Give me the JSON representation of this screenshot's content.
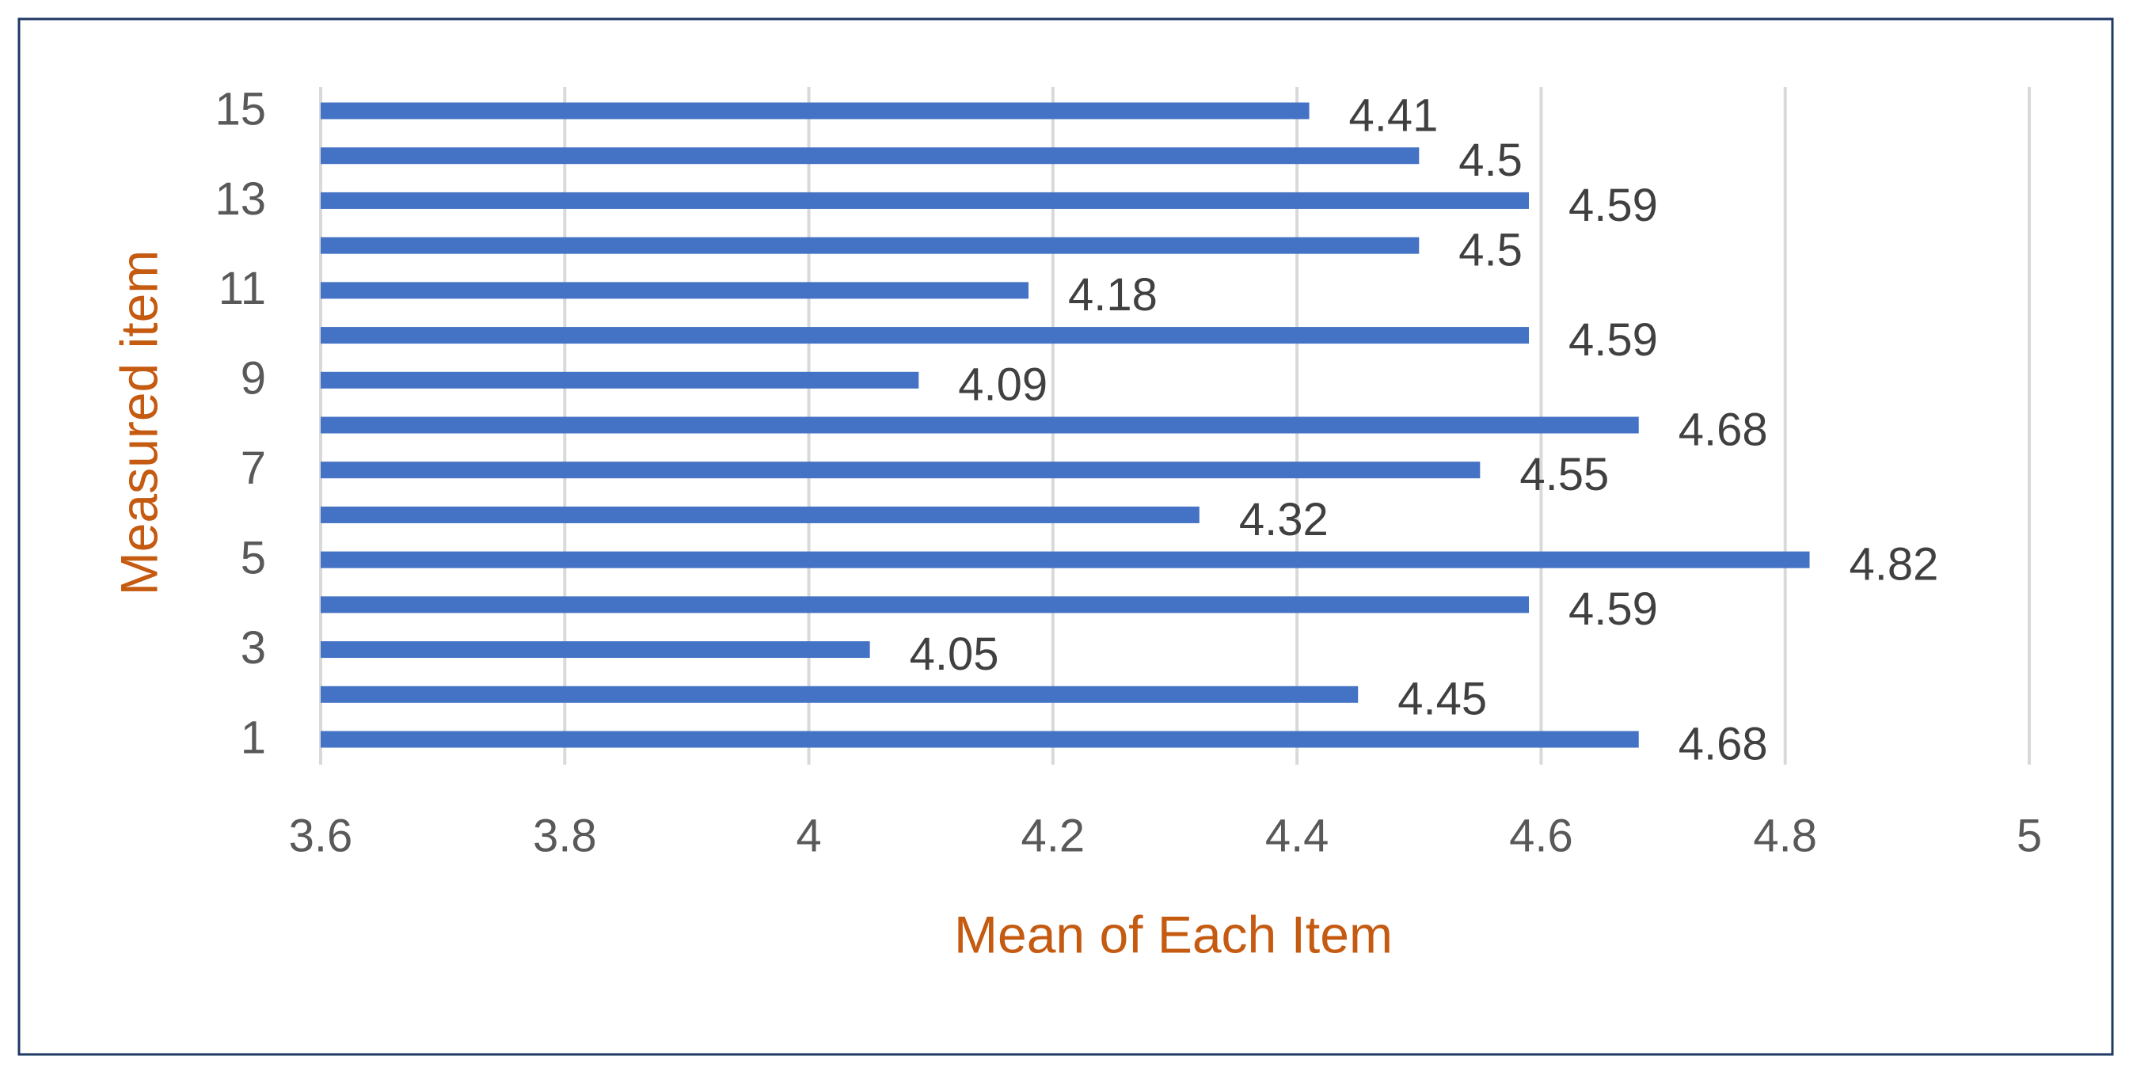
{
  "chart_data": {
    "type": "bar",
    "orientation": "horizontal",
    "x_label": "Mean of Each Item",
    "y_label": "Measured item",
    "categories": [
      "1",
      null,
      "3",
      null,
      "5",
      null,
      "7",
      null,
      "9",
      null,
      "11",
      null,
      "13",
      null,
      "15"
    ],
    "values": [
      4.68,
      4.45,
      4.05,
      4.59,
      4.82,
      4.32,
      4.55,
      4.68,
      4.09,
      4.59,
      4.18,
      4.5,
      4.59,
      4.5,
      4.41
    ],
    "color": "#4472c4",
    "xlim": [
      3.6,
      5
    ],
    "xticks": [
      3.6,
      3.8,
      4,
      4.2,
      4.4,
      4.6,
      4.8,
      5
    ],
    "grid": true
  }
}
